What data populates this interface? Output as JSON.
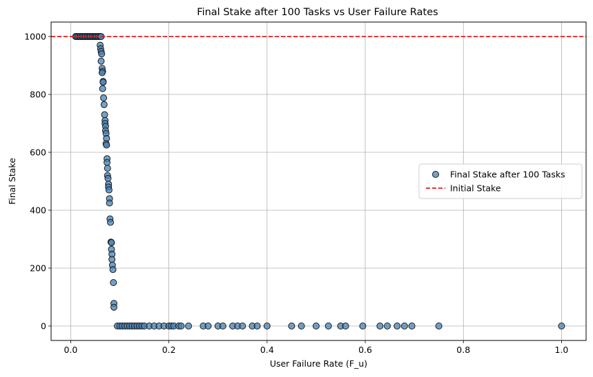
{
  "chart_data": {
    "type": "scatter",
    "title": "Final Stake after 100 Tasks vs User Failure Rates",
    "xlabel": "User Failure Rate (F_u)",
    "ylabel": "Final Stake",
    "xlim": [
      -0.04,
      1.05
    ],
    "ylim": [
      -50,
      1050
    ],
    "xticks": [
      0.0,
      0.2,
      0.4,
      0.6,
      0.8,
      1.0
    ],
    "xtick_labels": [
      "0.0",
      "0.2",
      "0.4",
      "0.6",
      "0.8",
      "1.0"
    ],
    "yticks": [
      0,
      200,
      400,
      600,
      800,
      1000
    ],
    "ytick_labels": [
      "0",
      "200",
      "400",
      "600",
      "800",
      "1000"
    ],
    "grid": true,
    "legend": {
      "placement": "center-right",
      "entries": [
        {
          "label": "Final Stake after 100 Tasks",
          "kind": "marker"
        },
        {
          "label": "Initial Stake",
          "kind": "dashed-line"
        }
      ]
    },
    "colors": {
      "marker_fill": "#4682b4",
      "marker_edge": "#1a1a1a",
      "reference_line": "#e41a1c"
    },
    "series": [
      {
        "name": "Final Stake after 100 Tasks",
        "points": [
          [
            0.01,
            1000
          ],
          [
            0.012,
            1000
          ],
          [
            0.015,
            1000
          ],
          [
            0.018,
            1000
          ],
          [
            0.02,
            1000
          ],
          [
            0.023,
            1000
          ],
          [
            0.025,
            1000
          ],
          [
            0.028,
            1000
          ],
          [
            0.03,
            1000
          ],
          [
            0.033,
            1000
          ],
          [
            0.035,
            1000
          ],
          [
            0.038,
            1000
          ],
          [
            0.04,
            1000
          ],
          [
            0.043,
            1000
          ],
          [
            0.045,
            1000
          ],
          [
            0.048,
            1000
          ],
          [
            0.05,
            1000
          ],
          [
            0.052,
            1000
          ],
          [
            0.055,
            1000
          ],
          [
            0.057,
            1000
          ],
          [
            0.06,
            1000
          ],
          [
            0.062,
            1000
          ],
          [
            0.06,
            970
          ],
          [
            0.061,
            958
          ],
          [
            0.062,
            948
          ],
          [
            0.063,
            940
          ],
          [
            0.062,
            915
          ],
          [
            0.064,
            890
          ],
          [
            0.065,
            880
          ],
          [
            0.064,
            875
          ],
          [
            0.066,
            845
          ],
          [
            0.066,
            842
          ],
          [
            0.065,
            820
          ],
          [
            0.067,
            788
          ],
          [
            0.068,
            765
          ],
          [
            0.069,
            730
          ],
          [
            0.07,
            710
          ],
          [
            0.07,
            700
          ],
          [
            0.071,
            690
          ],
          [
            0.071,
            675
          ],
          [
            0.072,
            665
          ],
          [
            0.073,
            648
          ],
          [
            0.072,
            630
          ],
          [
            0.073,
            625
          ],
          [
            0.074,
            578
          ],
          [
            0.074,
            565
          ],
          [
            0.075,
            545
          ],
          [
            0.075,
            520
          ],
          [
            0.076,
            510
          ],
          [
            0.077,
            490
          ],
          [
            0.077,
            480
          ],
          [
            0.078,
            470
          ],
          [
            0.079,
            440
          ],
          [
            0.079,
            425
          ],
          [
            0.08,
            370
          ],
          [
            0.081,
            358
          ],
          [
            0.082,
            290
          ],
          [
            0.083,
            288
          ],
          [
            0.083,
            265
          ],
          [
            0.084,
            248
          ],
          [
            0.084,
            230
          ],
          [
            0.085,
            210
          ],
          [
            0.086,
            195
          ],
          [
            0.087,
            150
          ],
          [
            0.088,
            78
          ],
          [
            0.088,
            65
          ],
          [
            0.095,
            0
          ],
          [
            0.1,
            0
          ],
          [
            0.105,
            0
          ],
          [
            0.11,
            0
          ],
          [
            0.115,
            0
          ],
          [
            0.12,
            0
          ],
          [
            0.125,
            0
          ],
          [
            0.13,
            0
          ],
          [
            0.135,
            0
          ],
          [
            0.14,
            0
          ],
          [
            0.145,
            0
          ],
          [
            0.15,
            0
          ],
          [
            0.16,
            0
          ],
          [
            0.17,
            0
          ],
          [
            0.18,
            0
          ],
          [
            0.19,
            0
          ],
          [
            0.2,
            0
          ],
          [
            0.205,
            0
          ],
          [
            0.21,
            0
          ],
          [
            0.22,
            0
          ],
          [
            0.225,
            0
          ],
          [
            0.24,
            0
          ],
          [
            0.27,
            0
          ],
          [
            0.28,
            0
          ],
          [
            0.3,
            0
          ],
          [
            0.31,
            0
          ],
          [
            0.33,
            0
          ],
          [
            0.34,
            0
          ],
          [
            0.35,
            0
          ],
          [
            0.37,
            0
          ],
          [
            0.38,
            0
          ],
          [
            0.4,
            0
          ],
          [
            0.45,
            0
          ],
          [
            0.47,
            0
          ],
          [
            0.5,
            0
          ],
          [
            0.525,
            0
          ],
          [
            0.55,
            0
          ],
          [
            0.56,
            0
          ],
          [
            0.595,
            0
          ],
          [
            0.63,
            0
          ],
          [
            0.645,
            0
          ],
          [
            0.665,
            0
          ],
          [
            0.68,
            0
          ],
          [
            0.695,
            0
          ],
          [
            0.75,
            0
          ],
          [
            1.0,
            0
          ]
        ]
      },
      {
        "name": "Initial Stake",
        "hline": 1000
      }
    ]
  }
}
